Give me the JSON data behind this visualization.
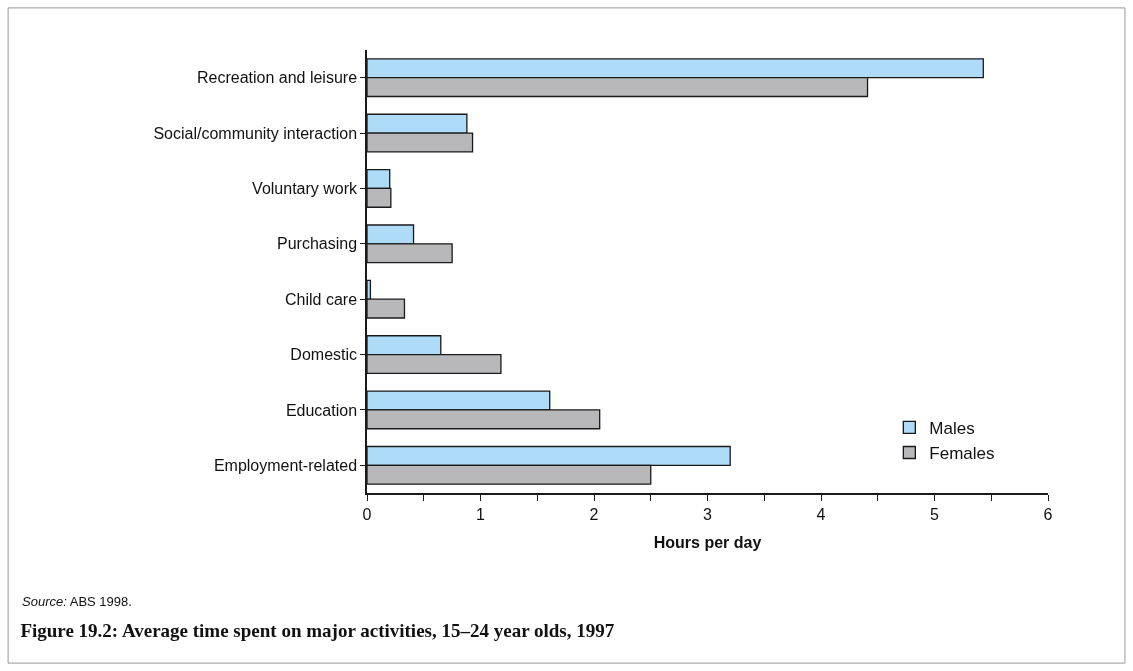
{
  "chart_data": {
    "type": "bar",
    "orientation": "horizontal",
    "title": "Figure 19.2: Average time spent on major activities, 15–24 year olds, 1997",
    "xlabel": "Hours per day",
    "categories": [
      "Recreation and leisure",
      "Social/community interaction",
      "Voluntary work",
      "Purchasing",
      "Child care",
      "Domestic",
      "Education",
      "Employment-related"
    ],
    "series": [
      {
        "name": "Males",
        "color": "#aedcf8",
        "values": [
          5.43,
          0.88,
          0.2,
          0.41,
          0.03,
          0.65,
          1.61,
          3.2
        ]
      },
      {
        "name": "Females",
        "color": "#b8b8ba",
        "values": [
          4.41,
          0.93,
          0.21,
          0.75,
          0.33,
          1.18,
          2.05,
          2.5
        ]
      }
    ],
    "xlim": [
      0,
      6
    ],
    "xticks": [
      0,
      {
        "value": 0.5,
        "label": null
      },
      1,
      {
        "value": 1.5,
        "label": null
      },
      2,
      {
        "value": 2.5,
        "label": null
      },
      3,
      {
        "value": 3.5,
        "label": null
      },
      4,
      {
        "value": 4.5,
        "label": null
      },
      5,
      {
        "value": 5.5,
        "label": null
      },
      6
    ],
    "legend": "bottom right",
    "annotations": [
      "Source: ABS 1998."
    ]
  }
}
